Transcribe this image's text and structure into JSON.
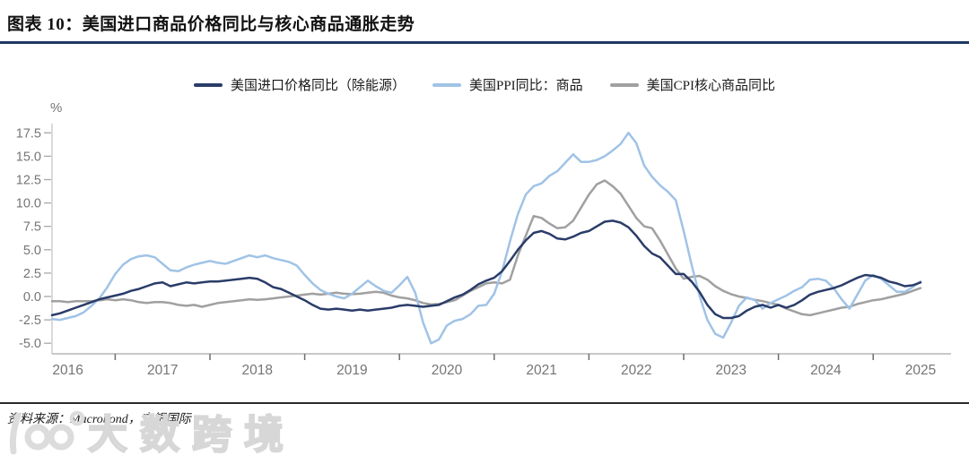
{
  "header": {
    "title": "图表 10：美国进口商品价格同比与核心商品通胀走势",
    "accent_color": "#1f3864"
  },
  "legend": [
    {
      "label": "美国进口价格同比（除能源）",
      "color": "#2a3c69"
    },
    {
      "label": "美国PPI同比：商品",
      "color": "#a0c3e6"
    },
    {
      "label": "美国CPI核心商品同比",
      "color": "#a0a0a0"
    }
  ],
  "axis": {
    "unit_label": "%",
    "y_tick_labels": [
      "17.5",
      "15.0",
      "12.5",
      "10.0",
      "7.5",
      "5.0",
      "2.5",
      "0.0",
      "-2.5",
      "-5.0"
    ],
    "x_year_labels": [
      "2016",
      "2017",
      "2018",
      "2019",
      "2020",
      "2021",
      "2022",
      "2023",
      "2024",
      "2025"
    ]
  },
  "chart_data": {
    "type": "line",
    "title": "美国进口商品价格同比与核心商品通胀走势",
    "ylabel": "%",
    "ylim": [
      -5.0,
      17.5
    ],
    "grid": false,
    "legend_position": "top-center",
    "freq": "monthly",
    "x_start": "2016-05",
    "x_end": "2025-07",
    "series": [
      {
        "name": "美国进口价格同比（除能源）",
        "key": "import-price-ex-energy",
        "color": "#2a3c69",
        "values": [
          -2.0,
          -1.8,
          -1.5,
          -1.2,
          -0.9,
          -0.6,
          -0.3,
          -0.1,
          0.1,
          0.3,
          0.6,
          0.8,
          1.1,
          1.4,
          1.5,
          1.1,
          1.3,
          1.5,
          1.4,
          1.5,
          1.6,
          1.6,
          1.7,
          1.8,
          1.9,
          2.0,
          1.9,
          1.5,
          1.0,
          0.8,
          0.4,
          0.0,
          -0.4,
          -0.9,
          -1.3,
          -1.4,
          -1.3,
          -1.4,
          -1.5,
          -1.4,
          -1.5,
          -1.4,
          -1.3,
          -1.2,
          -1.0,
          -0.9,
          -1.0,
          -1.1,
          -1.0,
          -0.9,
          -0.5,
          -0.1,
          0.2,
          0.7,
          1.3,
          1.7,
          2.0,
          2.7,
          3.8,
          5.0,
          6.0,
          6.8,
          7.0,
          6.7,
          6.2,
          6.1,
          6.4,
          6.8,
          7.0,
          7.5,
          8.0,
          8.1,
          7.9,
          7.4,
          6.5,
          5.4,
          4.6,
          4.2,
          3.3,
          2.4,
          2.4,
          1.6,
          0.5,
          -0.9,
          -1.9,
          -2.3,
          -2.3,
          -2.1,
          -1.5,
          -1.1,
          -0.9,
          -1.2,
          -0.9,
          -1.2,
          -0.9,
          -0.4,
          0.2,
          0.5,
          0.7,
          0.9,
          1.2,
          1.6,
          2.0,
          2.3,
          2.2,
          2.0,
          1.6,
          1.4,
          1.1,
          1.2,
          1.5
        ]
      },
      {
        "name": "美国PPI同比：商品",
        "key": "ppi-goods",
        "color": "#a0c3e6",
        "values": [
          -2.4,
          -2.5,
          -2.3,
          -2.1,
          -1.7,
          -1.0,
          -0.2,
          1.0,
          2.4,
          3.4,
          4.0,
          4.3,
          4.4,
          4.2,
          3.5,
          2.8,
          2.7,
          3.1,
          3.4,
          3.6,
          3.8,
          3.6,
          3.5,
          3.8,
          4.1,
          4.4,
          4.2,
          4.4,
          4.1,
          3.9,
          3.7,
          3.3,
          2.3,
          1.4,
          0.7,
          0.3,
          0.0,
          -0.2,
          0.3,
          1.0,
          1.7,
          1.1,
          0.6,
          0.4,
          1.2,
          2.1,
          0.4,
          -2.8,
          -5.0,
          -4.6,
          -3.1,
          -2.6,
          -2.4,
          -1.9,
          -1.0,
          -0.9,
          0.3,
          2.7,
          5.9,
          8.8,
          10.9,
          11.8,
          12.1,
          12.9,
          13.4,
          14.3,
          15.2,
          14.4,
          14.4,
          14.6,
          15.0,
          15.6,
          16.3,
          17.5,
          16.4,
          14.0,
          12.8,
          11.9,
          11.2,
          10.3,
          7.0,
          3.4,
          0.1,
          -2.5,
          -4.0,
          -4.4,
          -2.8,
          -1.0,
          -0.1,
          -0.4,
          -1.3,
          -0.7,
          -0.3,
          0.1,
          0.6,
          1.0,
          1.8,
          1.9,
          1.7,
          0.9,
          -0.3,
          -1.3,
          0.2,
          1.7,
          2.3,
          1.9,
          1.2,
          0.5,
          0.5,
          1.0,
          1.6
        ]
      },
      {
        "name": "美国CPI核心商品同比",
        "key": "cpi-core-goods",
        "color": "#a0a0a0",
        "values": [
          -0.5,
          -0.5,
          -0.6,
          -0.5,
          -0.5,
          -0.5,
          -0.4,
          -0.3,
          -0.4,
          -0.3,
          -0.4,
          -0.6,
          -0.7,
          -0.6,
          -0.6,
          -0.7,
          -0.9,
          -1.0,
          -0.9,
          -1.1,
          -0.9,
          -0.7,
          -0.6,
          -0.5,
          -0.4,
          -0.3,
          -0.35,
          -0.3,
          -0.2,
          -0.1,
          0.0,
          0.1,
          0.2,
          0.3,
          0.2,
          0.3,
          0.4,
          0.3,
          0.25,
          0.3,
          0.4,
          0.5,
          0.4,
          0.1,
          -0.1,
          -0.2,
          -0.4,
          -0.7,
          -0.85,
          -0.8,
          -0.6,
          -0.4,
          0.1,
          0.6,
          1.0,
          1.4,
          1.5,
          1.4,
          1.8,
          4.4,
          6.5,
          8.6,
          8.4,
          7.8,
          7.3,
          7.4,
          8.1,
          9.5,
          10.9,
          12.0,
          12.4,
          11.8,
          11.0,
          9.7,
          8.4,
          7.5,
          7.3,
          6.0,
          4.5,
          3.0,
          1.9,
          2.1,
          2.2,
          1.8,
          1.1,
          0.6,
          0.25,
          0.0,
          -0.15,
          -0.35,
          -0.5,
          -0.7,
          -0.9,
          -1.3,
          -1.6,
          -1.9,
          -2.0,
          -1.8,
          -1.6,
          -1.4,
          -1.2,
          -1.1,
          -0.8,
          -0.6,
          -0.4,
          -0.3,
          -0.1,
          0.1,
          0.3,
          0.6,
          0.9
        ]
      }
    ]
  },
  "footer": {
    "source": "资料来源：Macrobond，交银国际",
    "watermark": "大数跨境"
  }
}
